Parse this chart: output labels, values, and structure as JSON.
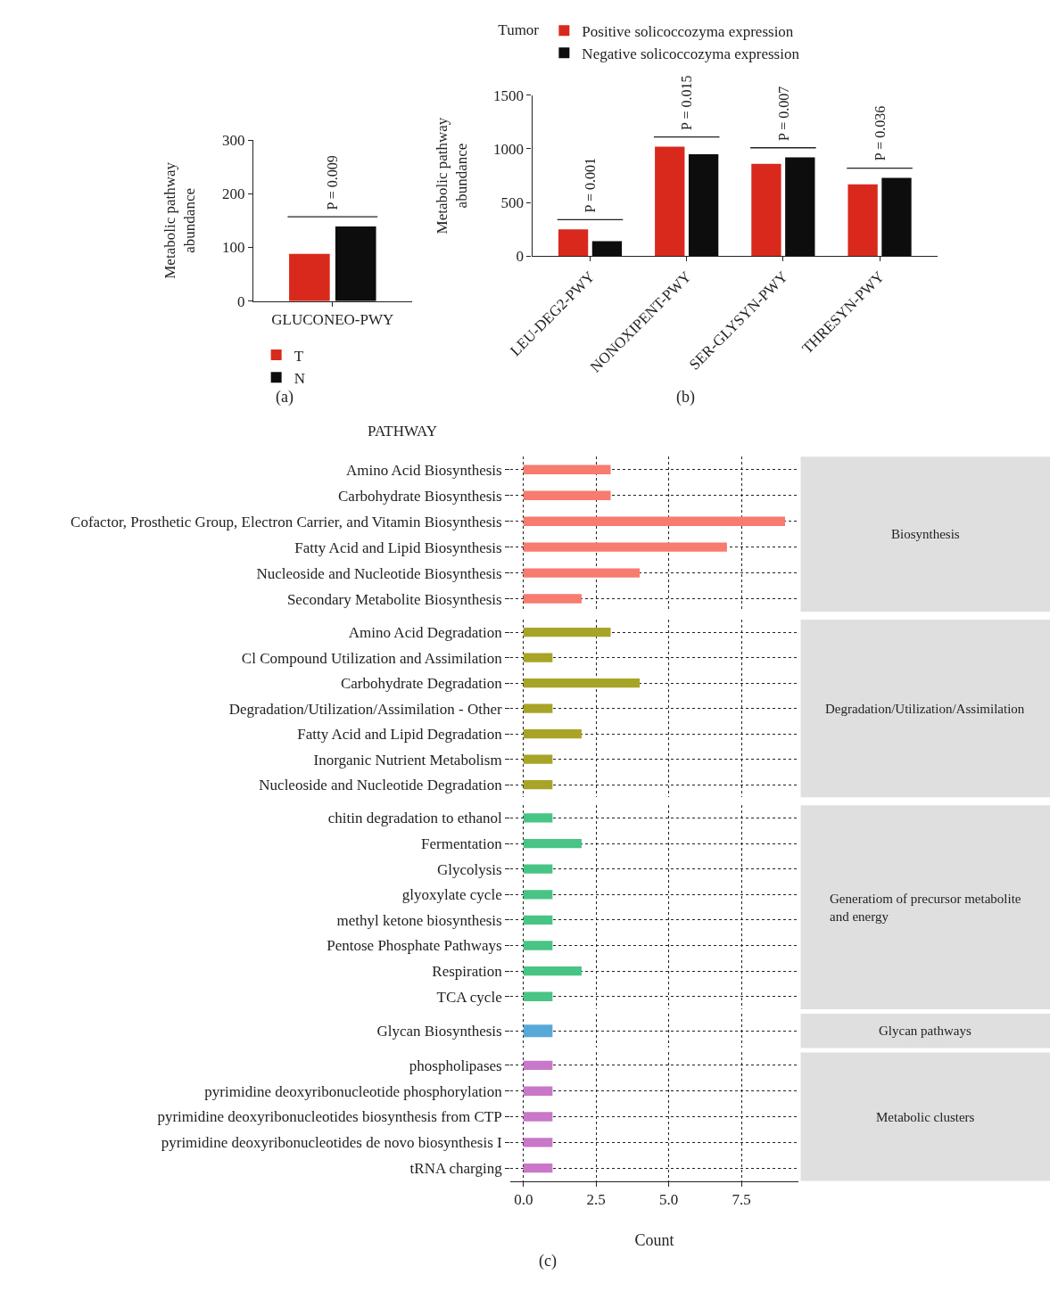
{
  "chart_data": [
    {
      "type": "bar",
      "categories": [
        "GLUCONEO-PWY"
      ],
      "ylabel": "Metabolic pathway abundance",
      "ylim": [
        0,
        300
      ],
      "yticks": [
        0,
        100,
        200,
        300
      ],
      "legend": "bottom",
      "series": [
        {
          "name": "T",
          "color": "#d9291c",
          "values": [
            88
          ]
        },
        {
          "name": "N",
          "color": "#0d0d0d",
          "values": [
            139
          ]
        }
      ],
      "annotations": [
        "P = 0.009",
        "(a)"
      ]
    },
    {
      "type": "bar",
      "categories": [
        "LEU-DEG2-PWY",
        "NONOXIPENT-PWY",
        "SER-GLYSYN-PWY",
        "THRESYN-PWY"
      ],
      "ylabel": "Metabolic pathway abundance",
      "ylim": [
        0,
        1500
      ],
      "yticks": [
        0,
        500,
        1000,
        1500
      ],
      "legend": "top",
      "legend_title": "Tumor",
      "series": [
        {
          "name": "Positive solicoccozyma expression",
          "color": "#d9291c",
          "values": [
            250,
            1020,
            860,
            670
          ]
        },
        {
          "name": "Negative solicoccozyma expression",
          "color": "#0d0d0d",
          "values": [
            140,
            950,
            920,
            730
          ]
        }
      ],
      "annotations": [
        "P = 0.001",
        "P = 0.015",
        "P = 0.007",
        "P = 0.036",
        "(b)"
      ]
    },
    {
      "type": "bar",
      "orientation": "horizontal",
      "y2label": "Biosynthesis",
      "ylabel": "PATHWAY",
      "categories": [
        "Amino Acid Biosynthesis",
        "Carbohydrate Biosynthesis",
        "Cofactor, Prosthetic Group, Electron Carrier, and Vitamin Biosynthesis",
        "Fatty Acid and Lipid Biosynthesis",
        "Nucleoside and Nucleotide Biosynthesis",
        "Secondary Metabolite Biosynthesis"
      ],
      "values": [
        3,
        3,
        9,
        7,
        4,
        2
      ],
      "color": "#f77b6e",
      "xlim": [
        -0.45,
        9.45
      ],
      "grid": true,
      "tick_labels": "y"
    },
    {
      "type": "bar",
      "orientation": "horizontal",
      "y2label": "Degradation/Utilization/Assimilation",
      "categories": [
        "Amino Acid Degradation",
        "Cl Compound Utilization and Assimilation",
        "Carbohydrate Degradation",
        "Degradation/Utilization/Assimilation - Other",
        "Fatty Acid and Lipid Degradation",
        "Inorganic Nutrient Metabolism",
        "Nucleoside and Nucleotide Degradation"
      ],
      "values": [
        3,
        1,
        4,
        1,
        2,
        1,
        1
      ],
      "color": "#a8a428",
      "xlim": [
        -0.45,
        9.45
      ],
      "grid": true,
      "tick_labels": "y"
    },
    {
      "type": "bar",
      "orientation": "horizontal",
      "y2label": "Generatiom of precursor metabolite and energy",
      "categories": [
        "chitin degradation to ethanol",
        "Fermentation",
        "Glycolysis",
        "glyoxylate cycle",
        "methyl ketone biosynthesis",
        "Pentose Phosphate Pathways",
        "Respiration",
        "TCA cycle"
      ],
      "values": [
        1,
        2,
        1,
        1,
        1,
        1,
        2,
        1
      ],
      "color": "#48c585",
      "xlim": [
        -0.45,
        9.45
      ],
      "grid": true,
      "tick_labels": "y"
    },
    {
      "type": "bar",
      "orientation": "horizontal",
      "y2label": "Glycan pathways",
      "categories": [
        "Glycan Biosynthesis"
      ],
      "values": [
        1
      ],
      "color": "#58a8d8",
      "xlim": [
        -0.45,
        9.45
      ],
      "grid": true,
      "tick_labels": "y"
    },
    {
      "type": "bar",
      "orientation": "horizontal",
      "y2label": "Metabolic clusters",
      "xlabel": "Count",
      "categories": [
        "phospholipases",
        "pyrimidine deoxyribonucleotide phosphorylation",
        "pyrimidine deoxyribonucleotides biosynthesis from CTP",
        "pyrimidine deoxyribonucleotides de novo biosynthesis I",
        "tRNA charging"
      ],
      "values": [
        1,
        1,
        1,
        1,
        1
      ],
      "color": "#c978c9",
      "xlim": [
        -0.45,
        9.45
      ],
      "xticks": [
        {
          "value": 0,
          "label": "0.0"
        },
        2.5,
        {
          "value": 5,
          "label": "5.0"
        },
        7.5
      ],
      "grid": true,
      "annotations": [
        "(c)"
      ]
    }
  ]
}
